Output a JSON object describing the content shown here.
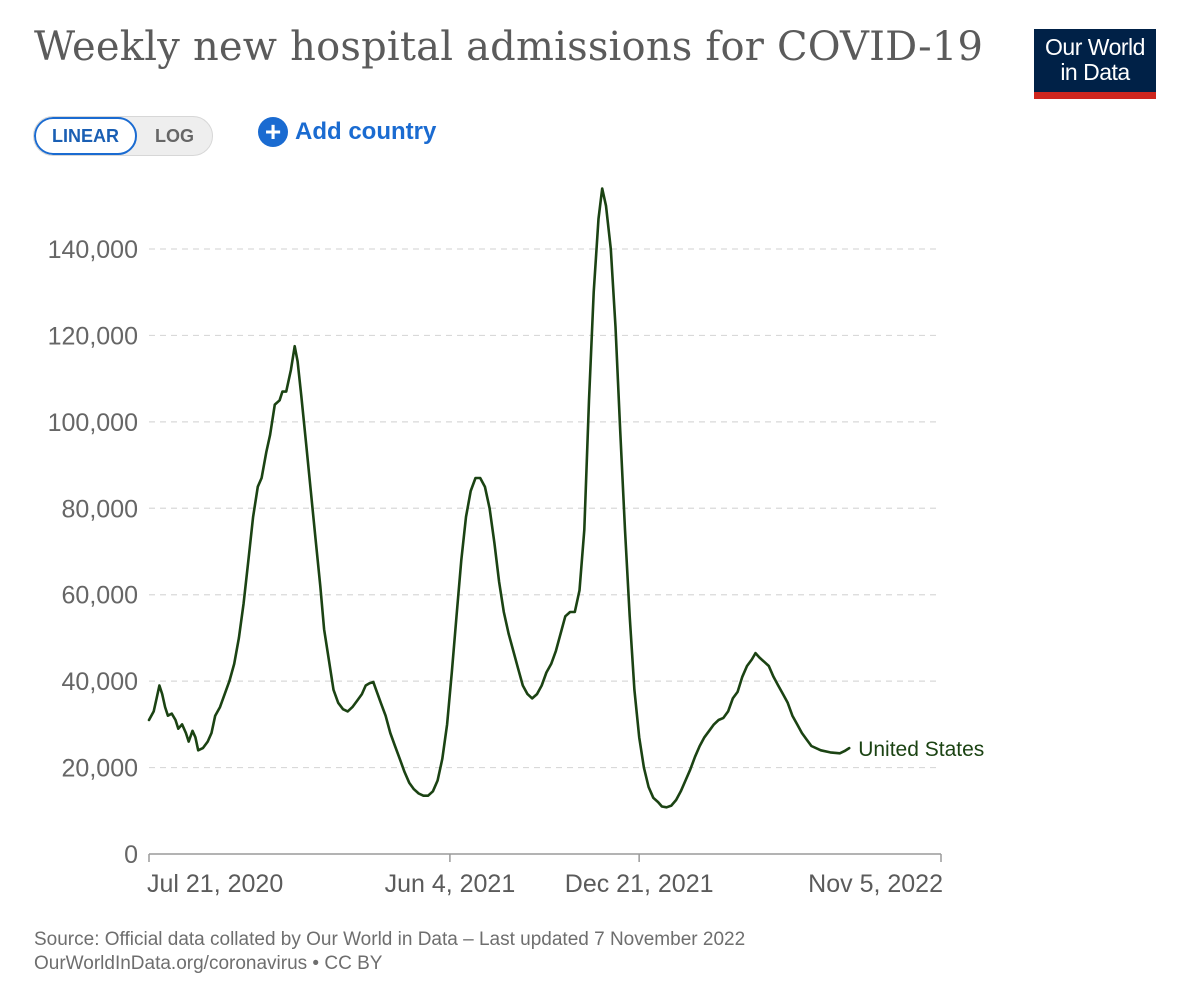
{
  "header": {
    "title": "Weekly new hospital admissions for COVID-19",
    "logo_line1": "Our World",
    "logo_line2": "in Data"
  },
  "controls": {
    "linear_label": "LINEAR",
    "log_label": "LOG",
    "add_country_label": "Add country",
    "add_icon": "+"
  },
  "colors": {
    "line": "#1b4313",
    "accent": "#1a6bd1",
    "logo_bg": "#002147",
    "logo_bar": "#ce261e"
  },
  "chart_data": {
    "type": "line",
    "title": "Weekly new hospital admissions for COVID-19",
    "xlabel": "",
    "ylabel": "",
    "ylim": [
      0,
      150000
    ],
    "yticks": [
      0,
      20000,
      40000,
      60000,
      80000,
      100000,
      120000,
      140000
    ],
    "ytick_labels": [
      "0",
      "20,000",
      "40,000",
      "60,000",
      "80,000",
      "100,000",
      "120,000",
      "140,000"
    ],
    "x_start": "2020-07-21",
    "x_end": "2022-11-05",
    "xtick_labels": [
      {
        "label": "Jul 21, 2020",
        "day": 0
      },
      {
        "label": "Jun 4, 2021",
        "day": 318
      },
      {
        "label": "Dec 21, 2021",
        "day": 518
      },
      {
        "label": "Nov 5, 2022",
        "day": 837
      }
    ],
    "grid": true,
    "series": [
      {
        "name": "United States",
        "points": [
          [
            0,
            31000
          ],
          [
            5,
            33000
          ],
          [
            8,
            36000
          ],
          [
            11,
            39000
          ],
          [
            14,
            37000
          ],
          [
            17,
            34000
          ],
          [
            20,
            32000
          ],
          [
            24,
            32500
          ],
          [
            28,
            31000
          ],
          [
            31,
            29000
          ],
          [
            35,
            30000
          ],
          [
            39,
            28000
          ],
          [
            42,
            26000
          ],
          [
            46,
            28500
          ],
          [
            49,
            27000
          ],
          [
            52,
            24000
          ],
          [
            57,
            24500
          ],
          [
            62,
            26000
          ],
          [
            66,
            28000
          ],
          [
            70,
            32000
          ],
          [
            75,
            34000
          ],
          [
            80,
            37000
          ],
          [
            85,
            40000
          ],
          [
            90,
            44000
          ],
          [
            95,
            50000
          ],
          [
            100,
            58000
          ],
          [
            105,
            68000
          ],
          [
            110,
            78000
          ],
          [
            115,
            85000
          ],
          [
            119,
            87000
          ],
          [
            124,
            93000
          ],
          [
            128,
            97000
          ],
          [
            133,
            104000
          ],
          [
            138,
            105000
          ],
          [
            141,
            107000
          ],
          [
            145,
            107000
          ],
          [
            150,
            112000
          ],
          [
            154,
            117500
          ],
          [
            157,
            114000
          ],
          [
            161,
            106000
          ],
          [
            166,
            95000
          ],
          [
            171,
            84000
          ],
          [
            176,
            73000
          ],
          [
            181,
            62000
          ],
          [
            185,
            52000
          ],
          [
            190,
            45000
          ],
          [
            195,
            38000
          ],
          [
            200,
            35000
          ],
          [
            205,
            33500
          ],
          [
            210,
            33000
          ],
          [
            215,
            34000
          ],
          [
            220,
            35500
          ],
          [
            225,
            37000
          ],
          [
            229,
            39000
          ],
          [
            233,
            39500
          ],
          [
            237,
            39800
          ],
          [
            240,
            38000
          ],
          [
            245,
            35000
          ],
          [
            250,
            32000
          ],
          [
            255,
            28000
          ],
          [
            260,
            25000
          ],
          [
            265,
            22000
          ],
          [
            270,
            19000
          ],
          [
            275,
            16500
          ],
          [
            280,
            15000
          ],
          [
            285,
            14000
          ],
          [
            290,
            13500
          ],
          [
            295,
            13500
          ],
          [
            300,
            14500
          ],
          [
            305,
            17000
          ],
          [
            310,
            22000
          ],
          [
            315,
            30000
          ],
          [
            320,
            42000
          ],
          [
            325,
            55000
          ],
          [
            330,
            68000
          ],
          [
            335,
            78000
          ],
          [
            340,
            84000
          ],
          [
            345,
            87000
          ],
          [
            350,
            87000
          ],
          [
            355,
            85000
          ],
          [
            360,
            80000
          ],
          [
            365,
            72000
          ],
          [
            370,
            63000
          ],
          [
            375,
            56000
          ],
          [
            380,
            51000
          ],
          [
            385,
            47000
          ],
          [
            390,
            43000
          ],
          [
            395,
            39000
          ],
          [
            400,
            37000
          ],
          [
            405,
            36000
          ],
          [
            410,
            37000
          ],
          [
            415,
            39000
          ],
          [
            420,
            42000
          ],
          [
            425,
            44000
          ],
          [
            430,
            47000
          ],
          [
            435,
            51000
          ],
          [
            440,
            55000
          ],
          [
            445,
            56000
          ],
          [
            450,
            56000
          ],
          [
            455,
            61000
          ],
          [
            460,
            75000
          ],
          [
            465,
            105000
          ],
          [
            470,
            130000
          ],
          [
            475,
            147000
          ],
          [
            479,
            154000
          ],
          [
            483,
            150000
          ],
          [
            488,
            140000
          ],
          [
            493,
            122000
          ],
          [
            498,
            98000
          ],
          [
            503,
            75000
          ],
          [
            508,
            55000
          ],
          [
            513,
            38000
          ],
          [
            518,
            27000
          ],
          [
            523,
            20000
          ],
          [
            528,
            15500
          ],
          [
            533,
            13000
          ],
          [
            538,
            12000
          ],
          [
            542,
            11000
          ],
          [
            547,
            10800
          ],
          [
            552,
            11200
          ],
          [
            557,
            12500
          ],
          [
            562,
            14500
          ],
          [
            567,
            17000
          ],
          [
            572,
            19500
          ],
          [
            577,
            22500
          ],
          [
            582,
            25000
          ],
          [
            587,
            27000
          ],
          [
            592,
            28500
          ],
          [
            597,
            30000
          ],
          [
            602,
            31000
          ],
          [
            607,
            31500
          ],
          [
            612,
            33000
          ],
          [
            617,
            36000
          ],
          [
            622,
            37500
          ],
          [
            627,
            41000
          ],
          [
            632,
            43500
          ],
          [
            637,
            45000
          ],
          [
            641,
            46500
          ],
          [
            645,
            45500
          ],
          [
            650,
            44500
          ],
          [
            655,
            43500
          ],
          [
            660,
            41000
          ],
          [
            665,
            39000
          ],
          [
            670,
            37000
          ],
          [
            675,
            35000
          ],
          [
            680,
            32000
          ],
          [
            685,
            30000
          ],
          [
            690,
            28000
          ],
          [
            695,
            26500
          ],
          [
            700,
            25000
          ],
          [
            710,
            24000
          ],
          [
            720,
            23500
          ],
          [
            730,
            23300
          ],
          [
            735,
            23800
          ],
          [
            740,
            24500
          ]
        ]
      }
    ],
    "line_label": "United States"
  },
  "footer": {
    "source": "Source: Official data collated by Our World in Data – Last updated 7 November 2022",
    "license": "OurWorldInData.org/coronavirus • CC BY"
  }
}
